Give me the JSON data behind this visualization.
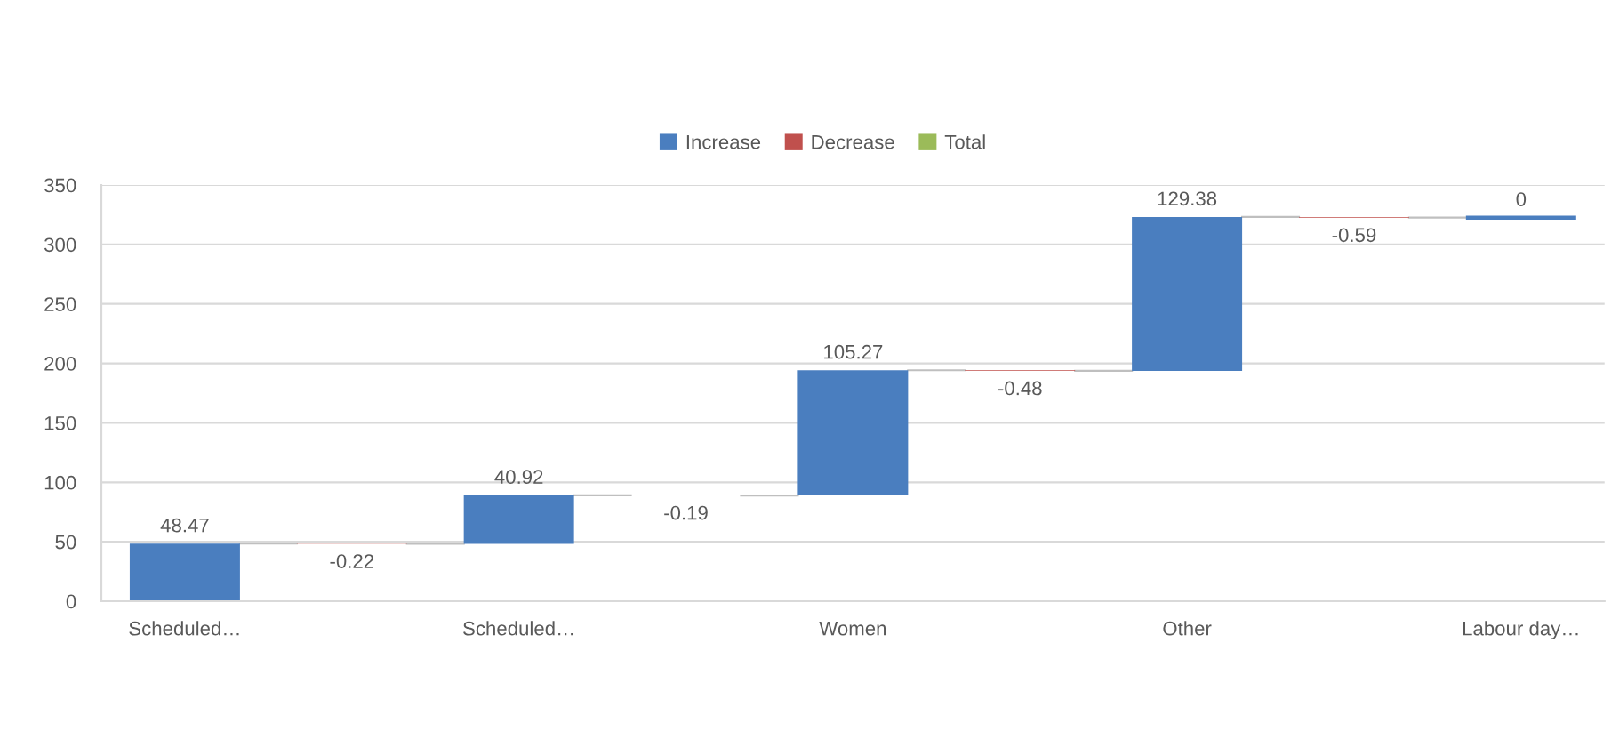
{
  "chart_data": {
    "type": "bar",
    "categories": [
      "Scheduled…",
      null,
      "Scheduled…",
      null,
      "Women",
      null,
      "Other",
      null,
      "Labour day…"
    ],
    "series": [
      {
        "name": "Increase",
        "color": "#4a7ebf",
        "values": [
          48.47,
          null,
          40.92,
          null,
          105.27,
          null,
          129.38,
          null,
          0
        ],
        "base": [
          0,
          null,
          48.25,
          null,
          88.98,
          null,
          193.77,
          null,
          322.56
        ]
      },
      {
        "name": "Decrease",
        "color": "#c0504d",
        "values": [
          null,
          -0.22,
          null,
          -0.19,
          null,
          -0.48,
          null,
          -0.59,
          null
        ],
        "base": [
          null,
          48.47,
          null,
          89.17,
          null,
          194.25,
          null,
          323.15,
          null
        ]
      },
      {
        "name": "Total",
        "color": "#9bbb59",
        "values": [
          null,
          null,
          null,
          null,
          null,
          null,
          null,
          null,
          null
        ]
      }
    ],
    "ylim": [
      0,
      350
    ],
    "yticks": [
      0,
      50,
      100,
      150,
      200,
      250,
      300,
      350
    ],
    "grid": "y",
    "legend": "top",
    "data_labels": true
  }
}
